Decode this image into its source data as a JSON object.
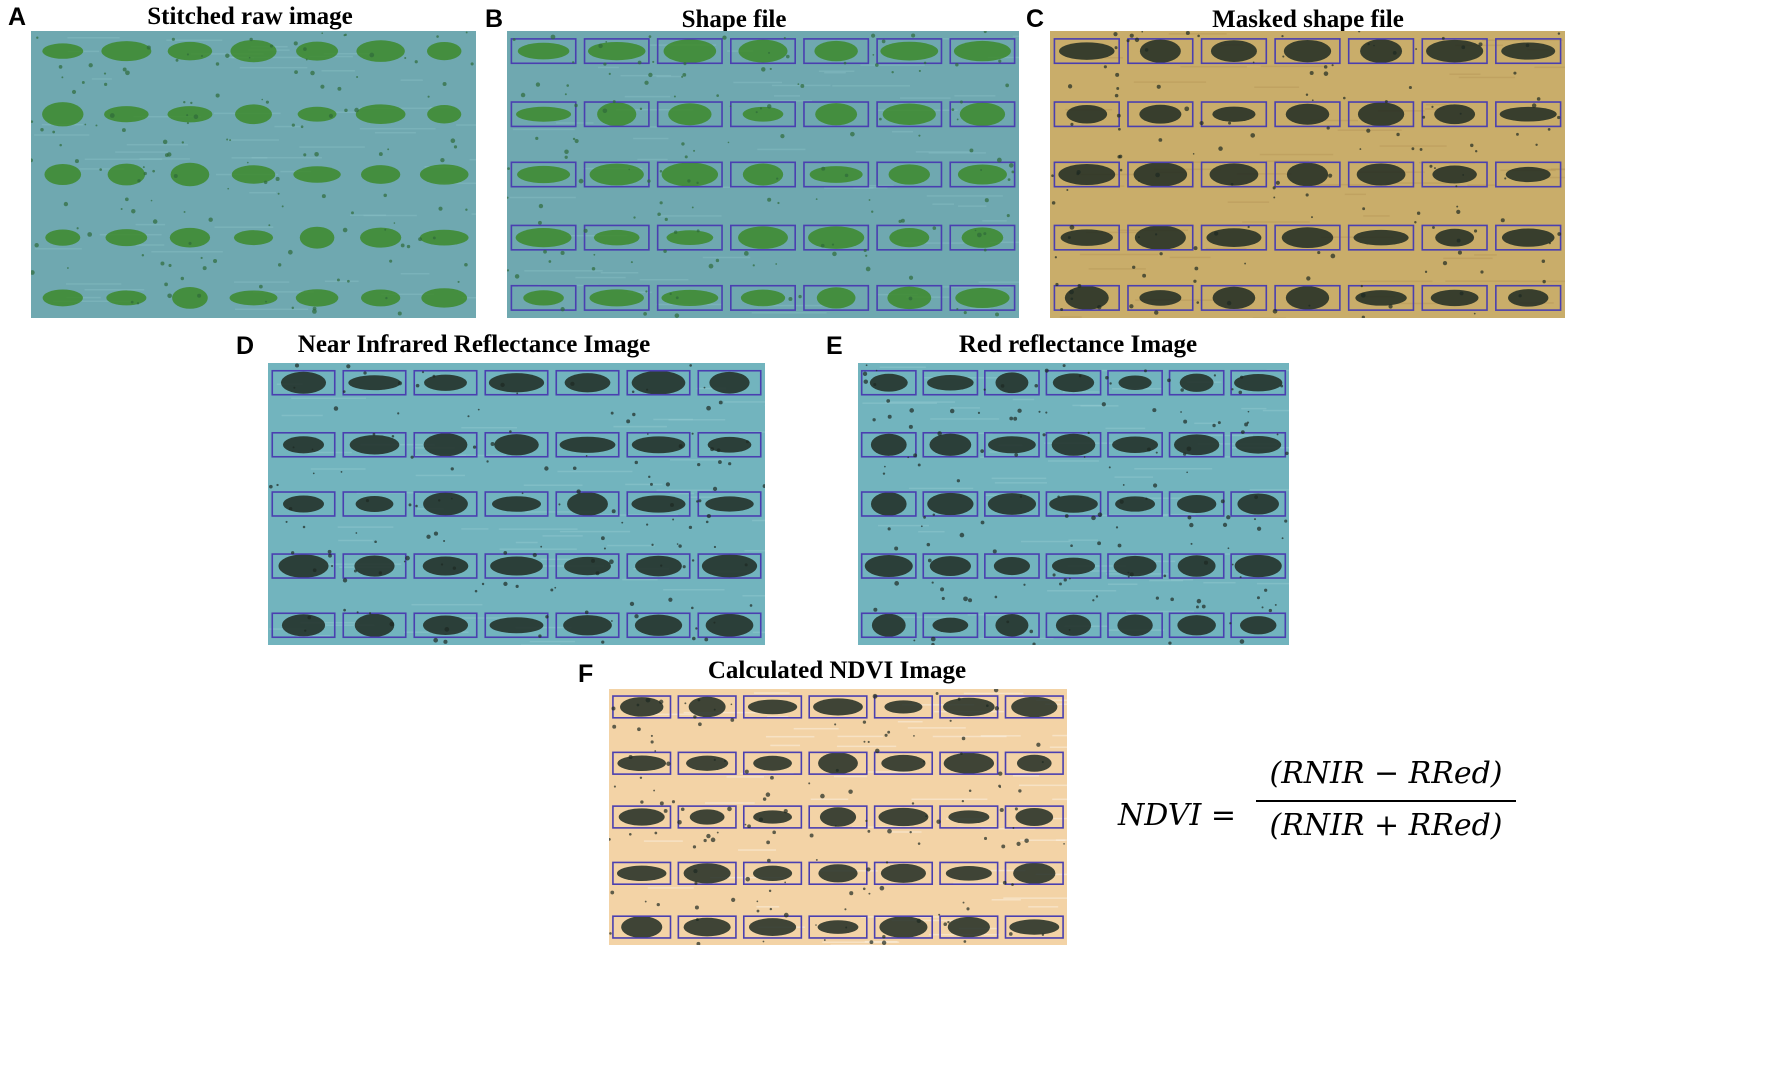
{
  "panels": [
    {
      "letter": "A",
      "title": "Stitched raw image",
      "style": "raw",
      "boxes": false
    },
    {
      "letter": "B",
      "title": "Shape file",
      "style": "raw",
      "boxes": true
    },
    {
      "letter": "C",
      "title": "Masked shape file",
      "style": "masked",
      "boxes": true
    },
    {
      "letter": "D",
      "title": "Near Infrared Reflectance Image",
      "style": "reflect",
      "boxes": true
    },
    {
      "letter": "E",
      "title": "Red reflectance Image",
      "style": "reflect",
      "boxes": true
    },
    {
      "letter": "F",
      "title": "Calculated NDVI Image",
      "style": "ndvi",
      "boxes": true
    }
  ],
  "formula": {
    "lhs": "NDVI =",
    "numerator": "(RNIR − RRed)",
    "denominator": "(RNIR + RRed)"
  },
  "colors": {
    "field_raw": "#6fa8b0",
    "vegetation_raw": "#3d8a2c",
    "field_masked": "#c9ad6a",
    "field_reflect": "#72b4be",
    "field_ndvi": "#f3d3a6",
    "masked_vegetation": "#1e2a22",
    "plot_box": "#4a3fb0"
  }
}
